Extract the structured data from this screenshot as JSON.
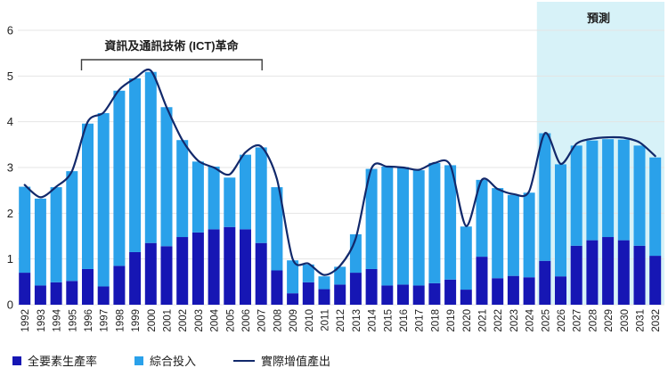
{
  "chart": {
    "forecast_label": "預測",
    "annotation_label": "資訊及通訊技術 (ICT)革命"
  },
  "legend": {
    "items": [
      {
        "label": "全要素生產率",
        "swatch": "square",
        "color": "#1616b4"
      },
      {
        "label": "綜合投入",
        "swatch": "square",
        "color": "#2aa1ea"
      },
      {
        "label": "實際增值產出",
        "swatch": "line",
        "color": "#12296b"
      }
    ]
  },
  "colors": {
    "tfp_bar": "#1616b4",
    "inputs_bar": "#2aa1ea",
    "output_line": "#12296b",
    "forecast_background": "#d7f2f8",
    "gridline": "#e4e4e4",
    "axis_text": "#1f1f1f",
    "bracket": "#3d3d3d",
    "page_background": "#ffffff"
  },
  "chart_data": {
    "type": "bar",
    "subtype": "stacked-bar-with-line-overlay",
    "title": "",
    "xlabel": "",
    "ylabel": "",
    "ylim": [
      0,
      6
    ],
    "yticks": [
      0,
      1,
      2,
      3,
      4,
      5,
      6
    ],
    "grid": true,
    "legend_position": "bottom-left",
    "x_tick_rotation": -90,
    "categories": [
      "1992",
      "1993",
      "1994",
      "1995",
      "1996",
      "1997",
      "1998",
      "1999",
      "2000",
      "2001",
      "2002",
      "2003",
      "2004",
      "2005",
      "2006",
      "2007",
      "2008",
      "2009",
      "2010",
      "2011",
      "2012",
      "2013",
      "2014",
      "2015",
      "2016",
      "2017",
      "2018",
      "2019",
      "2020",
      "2021",
      "2022",
      "2023",
      "2024",
      "2025",
      "2026",
      "2027",
      "2028",
      "2029",
      "2030",
      "2031",
      "2032"
    ],
    "series": [
      {
        "name": "全要素生產率",
        "type": "bar",
        "stack": "total",
        "color": "#1616b4",
        "values": [
          0.7,
          0.42,
          0.49,
          0.52,
          0.78,
          0.4,
          0.85,
          1.15,
          1.35,
          1.28,
          1.48,
          1.58,
          1.65,
          1.7,
          1.65,
          1.35,
          0.75,
          0.25,
          0.49,
          0.34,
          0.44,
          0.7,
          0.78,
          0.42,
          0.44,
          0.42,
          0.47,
          0.55,
          0.33,
          1.05,
          0.58,
          0.63,
          0.6,
          0.96,
          0.62,
          1.29,
          1.41,
          1.48,
          1.41,
          1.29,
          1.07
        ]
      },
      {
        "name": "綜合投入",
        "type": "bar",
        "stack": "total",
        "color": "#2aa1ea",
        "values": [
          1.88,
          1.9,
          2.08,
          2.4,
          3.18,
          3.79,
          3.83,
          3.8,
          3.74,
          3.04,
          2.12,
          1.55,
          1.37,
          1.08,
          1.63,
          2.09,
          1.82,
          0.72,
          0.39,
          0.28,
          0.39,
          0.84,
          2.19,
          2.6,
          2.57,
          2.52,
          2.63,
          2.5,
          1.38,
          1.68,
          1.97,
          1.77,
          1.85,
          2.79,
          2.45,
          2.19,
          2.18,
          2.14,
          2.2,
          2.19,
          2.15
        ]
      },
      {
        "name": "實際增值產出",
        "type": "line",
        "color": "#12296b",
        "values": [
          2.62,
          2.35,
          2.58,
          2.92,
          4.0,
          4.2,
          4.7,
          4.95,
          5.12,
          4.32,
          3.6,
          3.15,
          3.0,
          2.85,
          3.33,
          3.46,
          2.75,
          1.0,
          0.9,
          0.65,
          0.85,
          1.45,
          2.98,
          3.02,
          3.0,
          2.95,
          3.1,
          3.05,
          1.72,
          2.73,
          2.53,
          2.42,
          2.48,
          3.75,
          3.08,
          3.52,
          3.63,
          3.66,
          3.65,
          3.55,
          3.25
        ]
      }
    ],
    "forecast_region": {
      "label": "預測",
      "start_year": 2025,
      "end_year": 2032,
      "background": "#d7f2f8"
    },
    "annotations": [
      {
        "text": "資訊及通訊技術 (ICT)革命",
        "kind": "bracket",
        "span_years": [
          1996,
          2007
        ]
      }
    ]
  }
}
